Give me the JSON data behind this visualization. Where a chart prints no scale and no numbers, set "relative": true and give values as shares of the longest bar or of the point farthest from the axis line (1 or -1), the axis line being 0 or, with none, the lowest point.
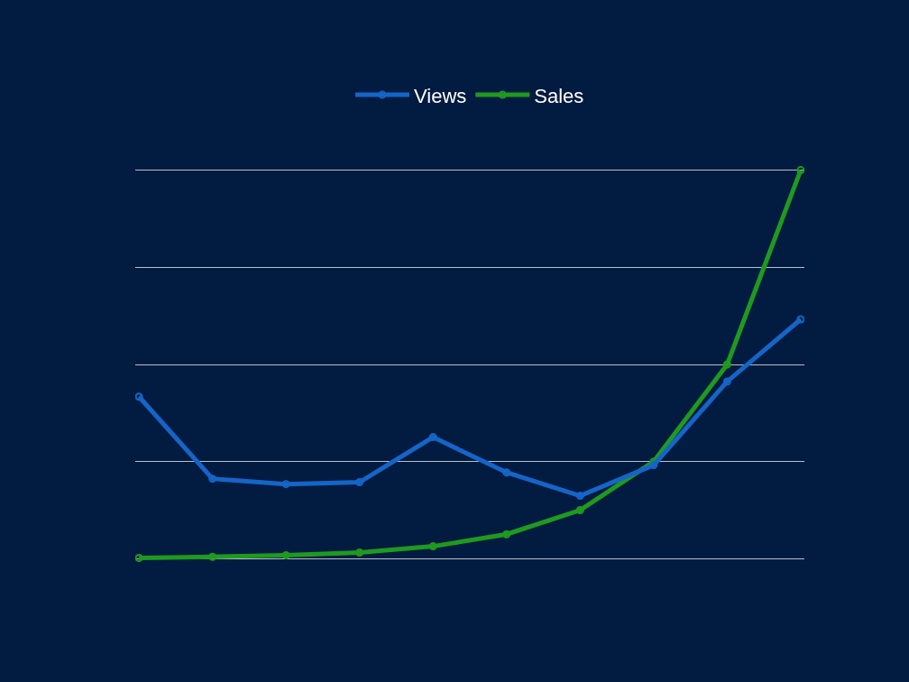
{
  "chart_data": {
    "type": "line",
    "relative": true,
    "categories": [
      null,
      null,
      null,
      null,
      null,
      null,
      null,
      null,
      null,
      null
    ],
    "series": [
      {
        "name": "Views",
        "color": "#1565c8",
        "values": [
          0.417,
          0.206,
          0.192,
          0.197,
          0.313,
          0.222,
          0.162,
          0.241,
          0.456,
          0.616
        ]
      },
      {
        "name": "Sales",
        "color": "#1f9a1f",
        "values": [
          0.002,
          0.005,
          0.009,
          0.016,
          0.032,
          0.063,
          0.125,
          0.25,
          0.5,
          1
        ]
      }
    ],
    "grid": "y",
    "legend": "top",
    "marker": "circle",
    "line_style": "solid"
  }
}
